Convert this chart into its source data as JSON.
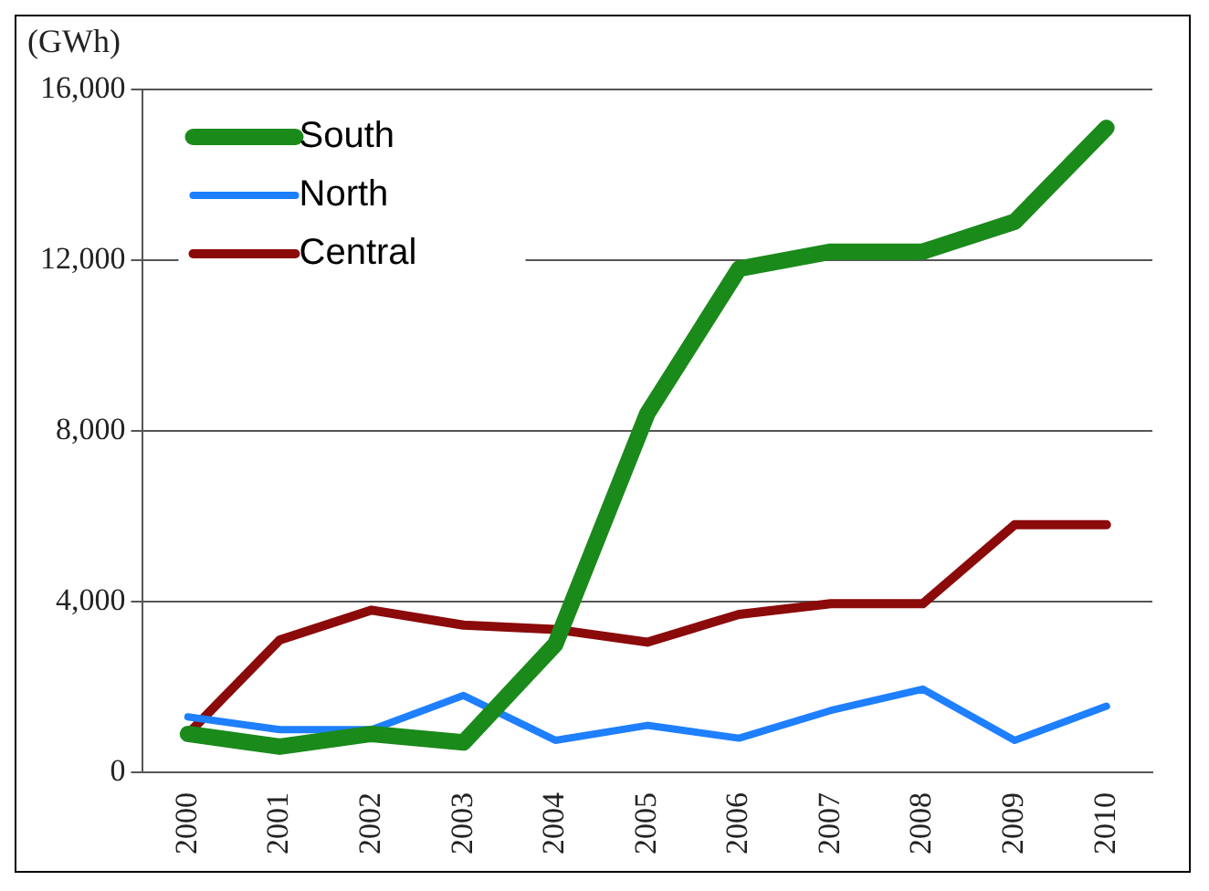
{
  "chart_data": {
    "type": "line",
    "ylabel": "(GWh)",
    "categories": [
      "2000",
      "2001",
      "2002",
      "2003",
      "2004",
      "2005",
      "2006",
      "2007",
      "2008",
      "2009",
      "2010"
    ],
    "series": [
      {
        "name": "South",
        "color": "#1a8a1a",
        "values": [
          900,
          600,
          900,
          700,
          3000,
          8400,
          11800,
          12200,
          12200,
          12900,
          15100
        ]
      },
      {
        "name": "North",
        "color": "#1e7fff",
        "values": [
          1300,
          1000,
          1000,
          1800,
          750,
          1100,
          800,
          1450,
          1950,
          750,
          1550
        ]
      },
      {
        "name": "Central",
        "color": "#8b0a0a",
        "values": [
          900,
          3100,
          3800,
          3450,
          3350,
          3050,
          3700,
          3950,
          3950,
          5800,
          5800
        ]
      }
    ],
    "ylim": [
      0,
      16000
    ],
    "yticks": [
      {
        "value": 0,
        "label": "0"
      },
      {
        "value": 4000,
        "label": "4,000"
      },
      {
        "value": 8000,
        "label": "8,000"
      },
      {
        "value": 12000,
        "label": "12,000"
      },
      {
        "value": 16000,
        "label": "16,000"
      }
    ],
    "grid": "y",
    "legend": "top left",
    "marker": "none",
    "line_style": "solid"
  }
}
